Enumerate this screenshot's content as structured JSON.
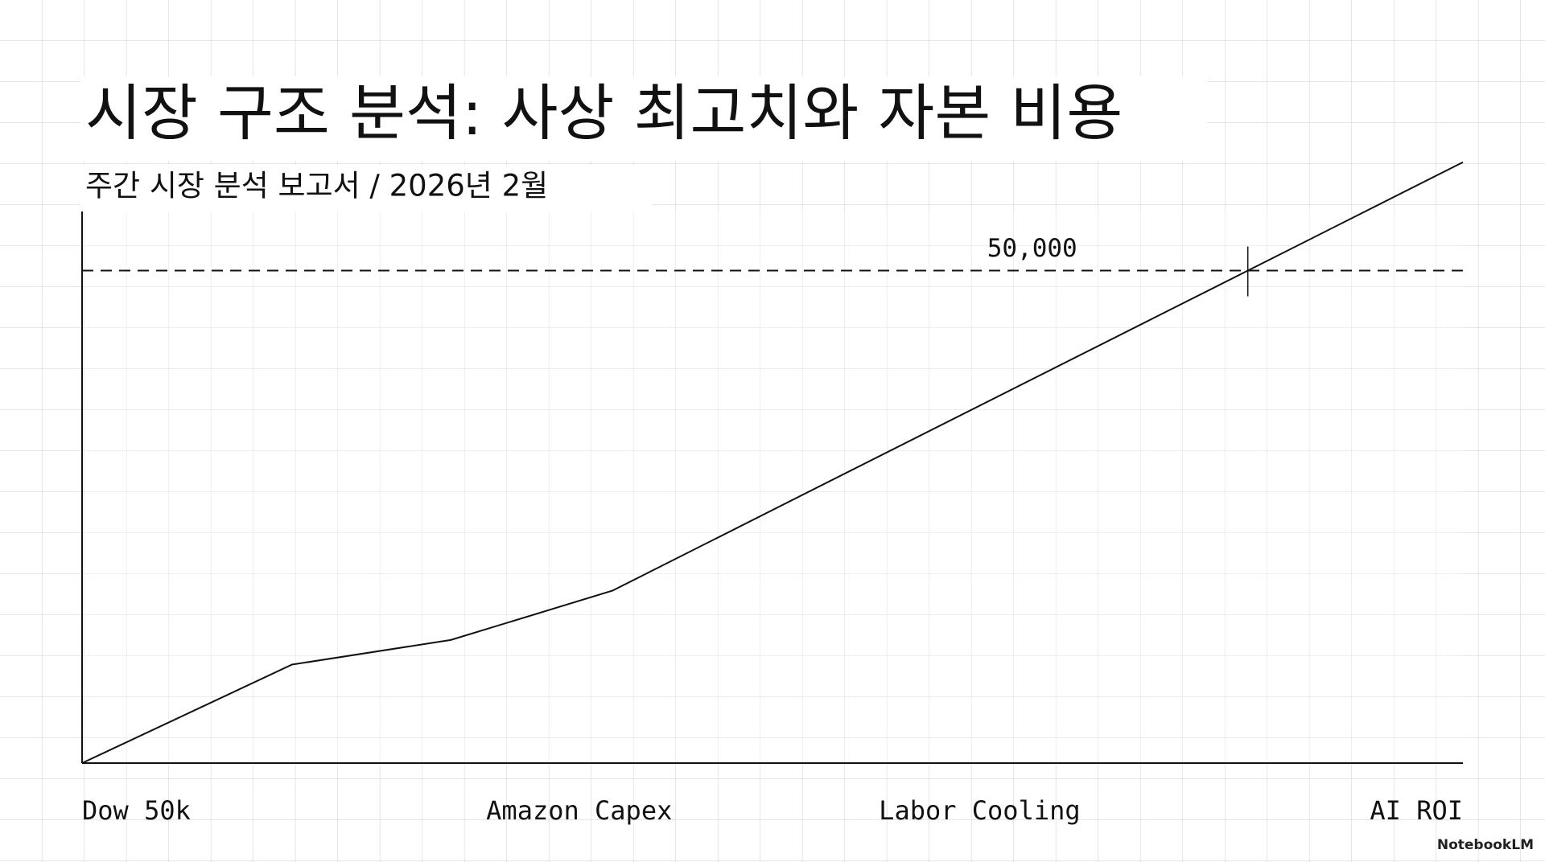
{
  "chart_data": {
    "type": "line",
    "title": "시장 구조 분석: 사상 최고치와 자본 비용",
    "subtitle": "주간 시장 분석 보고서 / 2026년 2월",
    "x": [
      0,
      15.2,
      26.7,
      38.4,
      100
    ],
    "values": [
      0,
      10000,
      12500,
      17500,
      61000
    ],
    "color": "#111111",
    "xlim": [
      0,
      100
    ],
    "xticks": [
      {
        "value": 0,
        "label": "Dow 50k"
      },
      {
        "value": 36,
        "label": "Amazon Capex"
      },
      {
        "value": 65,
        "label": "Labor Cooling"
      },
      {
        "value": 100,
        "label": "AI ROI"
      }
    ],
    "ylim": [
      0,
      56000
    ],
    "reference": {
      "value": 50000,
      "label": "50,000"
    },
    "brand": "NotebookLM"
  }
}
